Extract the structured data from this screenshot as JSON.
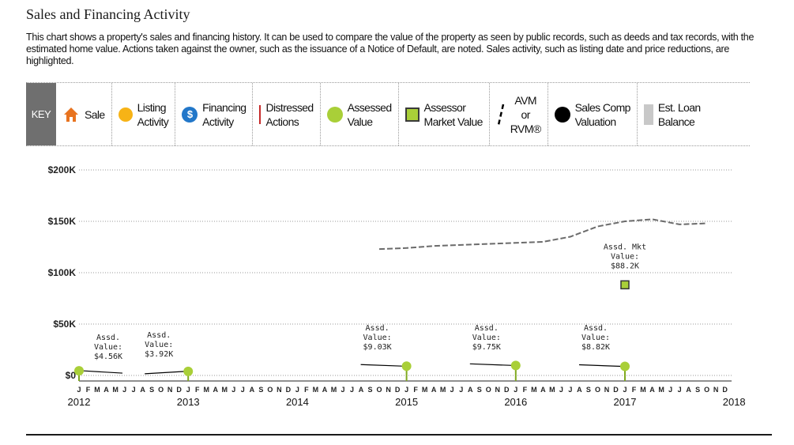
{
  "page": {
    "title": "Sales and Financing Activity",
    "description": "This chart shows a property's sales and financing history. It can be used to compare the value of the property as seen by public records, such as deeds and tax records, with the estimated home value. Actions taken against the owner, such as the issuance of a Notice of Default, are noted. Sales activity, such as listing date and price reductions, are highlighted."
  },
  "legend": {
    "key_label": "KEY",
    "items": [
      {
        "label": "Sale",
        "icon": "house-icon",
        "color": "#e8731f"
      },
      {
        "label": "Listing\nActivity",
        "icon": "listing-dot-icon",
        "color": "#f7b316"
      },
      {
        "label": "Financing\nActivity",
        "icon": "financing-icon",
        "color": "#2277c9"
      },
      {
        "label": "Distressed\nActions",
        "icon": "distressed-line-icon",
        "color": "#c62a2a"
      },
      {
        "label": "Assessed\nValue",
        "icon": "assessed-dot-icon",
        "color": "#a9cf38"
      },
      {
        "label": "Assessor\nMarket Value",
        "icon": "assessor-square-icon",
        "color": "#a9cf38"
      },
      {
        "label": "AVM\nor\nRVM®",
        "icon": "avm-dash-icon",
        "color": "#000000"
      },
      {
        "label": "Sales Comp\nValuation",
        "icon": "sales-comp-dot-icon",
        "color": "#000000"
      },
      {
        "label": "Est. Loan\nBalance",
        "icon": "loan-bar-icon",
        "color": "#c8c8c8"
      }
    ]
  },
  "chart_data": {
    "type": "line",
    "y_ticks": [
      0,
      50,
      100,
      150,
      200
    ],
    "y_tick_labels": [
      "$0",
      "$50K",
      "$100K",
      "$150K",
      "$200K"
    ],
    "ylim": [
      0,
      200
    ],
    "x_years": [
      "2012",
      "2013",
      "2014",
      "2015",
      "2016",
      "2017",
      "2018"
    ],
    "month_letters": [
      "J",
      "F",
      "M",
      "A",
      "M",
      "J",
      "J",
      "A",
      "S",
      "O",
      "N",
      "D"
    ],
    "grid": true,
    "avm_series": {
      "name": "AVM or RVM®",
      "color": "#6b6b6b",
      "x": [
        "2014-10",
        "2015-01",
        "2015-04",
        "2015-07",
        "2015-10",
        "2016-01",
        "2016-04",
        "2016-07",
        "2016-10",
        "2017-01",
        "2017-04",
        "2017-07",
        "2017-10"
      ],
      "values": [
        123,
        124,
        126,
        127,
        128,
        129,
        130,
        135,
        145,
        150,
        152,
        147,
        148
      ]
    },
    "assessed_values": [
      {
        "x": "2012-01",
        "value": 4.56,
        "label": "Assd.\nValue:\n$4.56K"
      },
      {
        "x": "2013-01",
        "value": 3.92,
        "label": "Assd.\nValue:\n$3.92K"
      },
      {
        "x": "2015-01",
        "value": 9.03,
        "label": "Assd.\nValue:\n$9.03K"
      },
      {
        "x": "2016-01",
        "value": 9.75,
        "label": "Assd.\nValue:\n$9.75K"
      },
      {
        "x": "2017-01",
        "value": 8.82,
        "label": "Assd.\nValue:\n$8.82K"
      }
    ],
    "assessor_market_value": {
      "x": "2017-01",
      "value": 88.2,
      "label": "Assd. Mkt\nValue:\n$88.2K"
    },
    "colors": {
      "assessed": "#a9cf38",
      "grid": "#9a9a9a",
      "axis": "#222222"
    }
  }
}
